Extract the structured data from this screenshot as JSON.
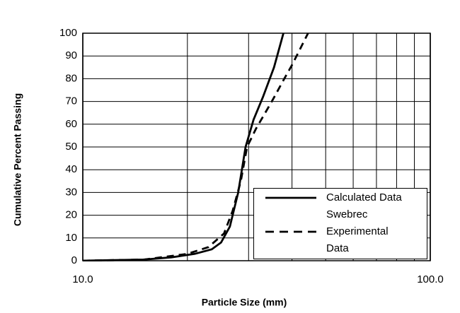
{
  "chart_data": {
    "type": "line",
    "x_label": "Particle Size (mm)",
    "y_label": "Cumulative Percent  Passing",
    "xlim": [
      10,
      100
    ],
    "xlog": true,
    "xticks": [
      {
        "value": 10,
        "label": "10.0"
      },
      {
        "value": 100,
        "label": "100.0"
      }
    ],
    "x_minor_grid": [
      20,
      30,
      40,
      50,
      60,
      70,
      80,
      90
    ],
    "ylim": [
      0,
      100
    ],
    "yticks": [
      0,
      10,
      20,
      30,
      40,
      50,
      60,
      70,
      80,
      90,
      100
    ],
    "grid": true,
    "legend": "lower right",
    "series": [
      {
        "name": "Calculated Data Swebrec",
        "color": "#000000",
        "dash": false,
        "x": [
          10,
          15,
          18,
          21,
          23.5,
          25,
          26.5,
          28,
          29.4,
          31,
          33,
          35.5,
          37.8
        ],
        "values": [
          0,
          0.5,
          1.5,
          3,
          5,
          8,
          15,
          30,
          50,
          62,
          72,
          85,
          100
        ]
      },
      {
        "name": "Experimental Data",
        "color": "#000000",
        "dash": true,
        "x": [
          10,
          15,
          20,
          23,
          25.5,
          27,
          28.5,
          29.7,
          31.5,
          35,
          38,
          40,
          44.5
        ],
        "values": [
          0,
          0.5,
          3,
          6,
          12,
          22,
          35,
          50,
          58,
          70,
          80,
          86,
          100
        ]
      }
    ]
  }
}
